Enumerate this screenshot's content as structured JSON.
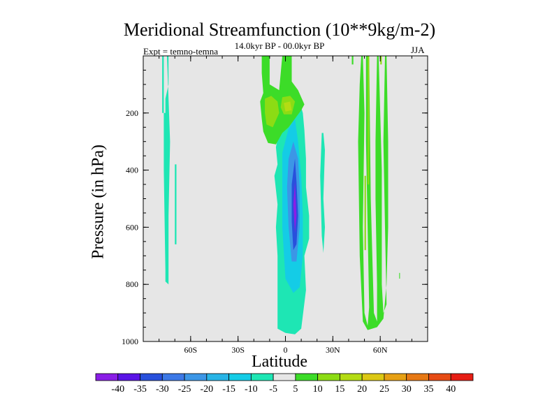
{
  "chart_data": {
    "type": "heatmap",
    "title": "Meridional Streamfunction (10**9kg/m-2)",
    "subtitle": "14.0kyr BP - 00.0kyr BP",
    "experiment": "Expt = temno-temna",
    "season": "JJA",
    "xlabel": "Latitude",
    "ylabel": "Pressure (in hPa)",
    "x_ticks": [
      {
        "value": -60,
        "label": "60S"
      },
      {
        "value": -30,
        "label": "30S"
      },
      {
        "value": 0,
        "label": "0"
      },
      {
        "value": 30,
        "label": "30N"
      },
      {
        "value": 60,
        "label": "60N"
      }
    ],
    "y_ticks": [
      200,
      400,
      600,
      800,
      1000
    ],
    "xlim": [
      -90,
      90
    ],
    "ylim": [
      1000,
      0
    ],
    "background_color": "#e6e6e6",
    "levels": [
      -40,
      -35,
      -30,
      -25,
      -20,
      -15,
      -10,
      -5,
      5,
      10,
      15,
      20,
      25,
      30,
      35,
      40
    ],
    "level_colors": [
      "#8a1ee6",
      "#5a14e6",
      "#2850dc",
      "#3c78e6",
      "#3c96e6",
      "#28b4e6",
      "#14cce6",
      "#1ee6b4",
      "#e6e6e6",
      "#3cdc28",
      "#8cdc14",
      "#b4dc14",
      "#dcc814",
      "#e6a014",
      "#e67814",
      "#e64b14",
      "#e61e14"
    ],
    "regions": [
      {
        "name": "neg-left-column",
        "level": -7.5,
        "points": [
          [
            -78,
            0
          ],
          [
            -77,
            0
          ],
          [
            -77,
            400
          ],
          [
            -76,
            750
          ],
          [
            -76,
            790
          ],
          [
            -74,
            800
          ],
          [
            -74,
            560
          ],
          [
            -73,
            300
          ],
          [
            -74,
            150
          ],
          [
            -75,
            0
          ],
          [
            -74,
            0
          ],
          [
            -74,
            100
          ],
          [
            -76,
            150
          ],
          [
            -76,
            200
          ],
          [
            -78,
            200
          ]
        ]
      },
      {
        "name": "neg-left-strip",
        "level": -7.5,
        "points": [
          [
            -70,
            380
          ],
          [
            -69,
            380
          ],
          [
            -69,
            660
          ],
          [
            -70,
            660
          ]
        ]
      },
      {
        "name": "neg-main-outer",
        "level": -7.5,
        "points": [
          [
            10,
            180
          ],
          [
            7,
            180
          ],
          [
            3,
            190
          ],
          [
            0,
            230
          ],
          [
            -4,
            260
          ],
          [
            -6,
            320
          ],
          [
            -5,
            380
          ],
          [
            -7,
            420
          ],
          [
            -5,
            520
          ],
          [
            -6,
            600
          ],
          [
            -5,
            700
          ],
          [
            -5,
            800
          ],
          [
            -5,
            900
          ],
          [
            -5,
            955
          ],
          [
            0,
            970
          ],
          [
            6,
            975
          ],
          [
            10,
            955
          ],
          [
            13,
            820
          ],
          [
            12,
            700
          ],
          [
            15,
            640
          ],
          [
            15,
            560
          ],
          [
            13,
            460
          ],
          [
            13,
            360
          ],
          [
            12,
            260
          ],
          [
            11,
            200
          ]
        ]
      },
      {
        "name": "neg-main-15",
        "level": -12.5,
        "points": [
          [
            6,
            220
          ],
          [
            2,
            255
          ],
          [
            -2,
            340
          ],
          [
            -2,
            450
          ],
          [
            -2,
            600
          ],
          [
            0,
            780
          ],
          [
            5,
            830
          ],
          [
            9,
            810
          ],
          [
            11,
            700
          ],
          [
            11,
            560
          ],
          [
            10,
            420
          ],
          [
            8,
            300
          ]
        ]
      },
      {
        "name": "neg-main-25",
        "level": -22.5,
        "points": [
          [
            5,
            300
          ],
          [
            2,
            360
          ],
          [
            1,
            460
          ],
          [
            2,
            600
          ],
          [
            4,
            720
          ],
          [
            7,
            720
          ],
          [
            9,
            600
          ],
          [
            9,
            460
          ],
          [
            8,
            360
          ]
        ]
      },
      {
        "name": "neg-main-35",
        "level": -32.5,
        "points": [
          [
            6,
            360
          ],
          [
            4,
            450
          ],
          [
            4,
            580
          ],
          [
            5,
            680
          ],
          [
            7,
            660
          ],
          [
            8,
            560
          ],
          [
            7,
            440
          ]
        ]
      },
      {
        "name": "neg-main-40",
        "level": -42.5,
        "points": [
          [
            6,
            440
          ],
          [
            5,
            520
          ],
          [
            6,
            620
          ],
          [
            7,
            560
          ]
        ]
      },
      {
        "name": "neg-mid-right",
        "level": -7.5,
        "points": [
          [
            23,
            270
          ],
          [
            24,
            270
          ],
          [
            25,
            330
          ],
          [
            24,
            500
          ],
          [
            25,
            600
          ],
          [
            24,
            690
          ],
          [
            23,
            630
          ],
          [
            22,
            420
          ]
        ]
      },
      {
        "name": "pos-upper-left",
        "level": 7.5,
        "points": [
          [
            -15,
            0
          ],
          [
            -10,
            0
          ],
          [
            -10,
            100
          ],
          [
            -4,
            120
          ],
          [
            -2,
            0
          ],
          [
            4,
            0
          ],
          [
            4,
            90
          ],
          [
            8,
            120
          ],
          [
            12,
            170
          ],
          [
            10,
            190
          ],
          [
            6,
            220
          ],
          [
            2,
            250
          ],
          [
            -2,
            270
          ],
          [
            -6,
            310
          ],
          [
            -11,
            305
          ],
          [
            -14,
            265
          ],
          [
            -15,
            220
          ],
          [
            -16,
            160
          ],
          [
            -14,
            130
          ],
          [
            -15,
            60
          ]
        ]
      },
      {
        "name": "pos-upper-15",
        "level": 12.5,
        "points": [
          [
            -13,
            150
          ],
          [
            -9,
            140
          ],
          [
            -5,
            160
          ],
          [
            -4,
            200
          ],
          [
            -8,
            250
          ],
          [
            -12,
            240
          ],
          [
            -13,
            200
          ]
        ]
      },
      {
        "name": "pos-upper-15b",
        "level": 12.5,
        "points": [
          [
            -2,
            145
          ],
          [
            3,
            140
          ],
          [
            6,
            160
          ],
          [
            4,
            205
          ],
          [
            -1,
            205
          ],
          [
            -3,
            180
          ]
        ]
      },
      {
        "name": "pos-upper-20",
        "level": 17.5,
        "points": [
          [
            -1,
            165
          ],
          [
            3,
            160
          ],
          [
            4,
            190
          ],
          [
            0,
            195
          ]
        ]
      },
      {
        "name": "pos-right-strip-a",
        "level": 7.5,
        "points": [
          [
            42,
            0
          ],
          [
            43,
            0
          ],
          [
            43,
            30
          ],
          [
            42,
            30
          ]
        ]
      },
      {
        "name": "pos-right-strip-b",
        "level": 7.5,
        "points": [
          [
            48,
            0
          ],
          [
            49,
            0
          ],
          [
            50,
            200
          ],
          [
            49,
            600
          ],
          [
            50,
            900
          ],
          [
            52,
            945
          ],
          [
            53,
            880
          ],
          [
            52,
            600
          ],
          [
            51,
            300
          ],
          [
            51,
            0
          ],
          [
            53,
            0
          ],
          [
            54,
            500
          ],
          [
            56,
            900
          ],
          [
            58,
            930
          ],
          [
            58,
            800
          ],
          [
            57,
            500
          ],
          [
            57,
            300
          ],
          [
            58,
            0
          ],
          [
            59,
            0
          ],
          [
            61,
            400
          ],
          [
            61,
            800
          ],
          [
            62,
            900
          ],
          [
            64,
            870
          ],
          [
            63,
            600
          ],
          [
            62,
            300
          ],
          [
            63,
            0
          ],
          [
            64,
            0
          ],
          [
            65,
            300
          ],
          [
            65,
            600
          ],
          [
            64,
            800
          ],
          [
            62,
            920
          ],
          [
            58,
            950
          ],
          [
            52,
            960
          ],
          [
            49,
            930
          ],
          [
            47,
            700
          ],
          [
            46,
            300
          ],
          [
            47,
            100
          ]
        ]
      },
      {
        "name": "pos-right-15",
        "level": 12.5,
        "points": [
          [
            52,
            0
          ],
          [
            53,
            0
          ],
          [
            53,
            450
          ],
          [
            52,
            450
          ]
        ]
      },
      {
        "name": "pos-right-15b",
        "level": 12.5,
        "points": [
          [
            50,
            420
          ],
          [
            51,
            420
          ],
          [
            51,
            680
          ],
          [
            50,
            680
          ]
        ]
      },
      {
        "name": "pos-right-15c",
        "level": 12.5,
        "points": [
          [
            60,
            0
          ],
          [
            61,
            0
          ],
          [
            61,
            30
          ],
          [
            60,
            30
          ]
        ]
      },
      {
        "name": "pos-right-dot",
        "level": 7.5,
        "points": [
          [
            72,
            760
          ],
          [
            72.5,
            760
          ],
          [
            72.5,
            780
          ],
          [
            72,
            780
          ]
        ]
      }
    ]
  }
}
